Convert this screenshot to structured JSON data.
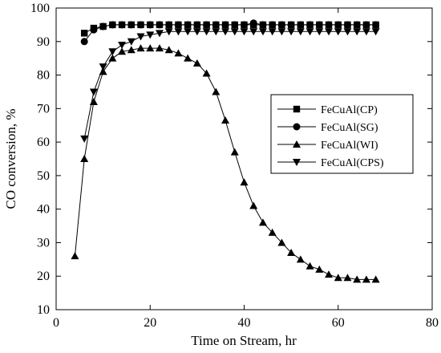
{
  "chart_data": {
    "type": "line",
    "title": "",
    "xlabel": "Time on Stream, hr",
    "ylabel": "CO conversion, %",
    "xlim": [
      0,
      80
    ],
    "ylim": [
      10,
      100
    ],
    "xticks": [
      0,
      20,
      40,
      60,
      80
    ],
    "yticks": [
      10,
      20,
      30,
      40,
      50,
      60,
      70,
      80,
      90,
      100
    ],
    "grid": false,
    "legend_position": "right",
    "series": [
      {
        "name": "FeCuAl(CP)",
        "marker": "square",
        "points": [
          [
            6,
            92.5
          ],
          [
            8,
            94
          ],
          [
            10,
            94.5
          ],
          [
            12,
            95
          ],
          [
            14,
            95
          ],
          [
            16,
            95
          ],
          [
            18,
            95
          ],
          [
            20,
            95
          ],
          [
            22,
            95
          ],
          [
            24,
            95
          ],
          [
            26,
            95
          ],
          [
            28,
            95
          ],
          [
            30,
            95
          ],
          [
            32,
            95
          ],
          [
            34,
            95
          ],
          [
            36,
            95
          ],
          [
            38,
            95
          ],
          [
            40,
            95
          ],
          [
            42,
            95
          ],
          [
            44,
            95
          ],
          [
            46,
            95
          ],
          [
            48,
            95
          ],
          [
            50,
            95
          ],
          [
            52,
            95
          ],
          [
            54,
            95
          ],
          [
            56,
            95
          ],
          [
            58,
            95
          ],
          [
            60,
            95
          ],
          [
            62,
            95
          ],
          [
            64,
            95
          ],
          [
            66,
            95
          ],
          [
            68,
            95
          ]
        ]
      },
      {
        "name": "FeCuAl(SG)",
        "marker": "circle",
        "points": [
          [
            6,
            90
          ],
          [
            8,
            93.5
          ],
          [
            10,
            94.5
          ],
          [
            12,
            95
          ],
          [
            14,
            95
          ],
          [
            16,
            95
          ],
          [
            18,
            95
          ],
          [
            20,
            95
          ],
          [
            22,
            95
          ],
          [
            24,
            95
          ],
          [
            26,
            95
          ],
          [
            28,
            95
          ],
          [
            30,
            95
          ],
          [
            32,
            95
          ],
          [
            34,
            95
          ],
          [
            36,
            95
          ],
          [
            38,
            95
          ],
          [
            40,
            95
          ],
          [
            42,
            95.5
          ],
          [
            44,
            95
          ],
          [
            46,
            95
          ],
          [
            48,
            95
          ],
          [
            50,
            95
          ],
          [
            52,
            95
          ],
          [
            54,
            95
          ],
          [
            56,
            95
          ],
          [
            58,
            95
          ],
          [
            60,
            95
          ],
          [
            62,
            95
          ],
          [
            64,
            95
          ],
          [
            66,
            95
          ],
          [
            68,
            95
          ]
        ]
      },
      {
        "name": "FeCuAl(WI)",
        "marker": "triangle-up",
        "points": [
          [
            4,
            26
          ],
          [
            6,
            55
          ],
          [
            8,
            72
          ],
          [
            10,
            81
          ],
          [
            12,
            85
          ],
          [
            14,
            87
          ],
          [
            16,
            87.5
          ],
          [
            18,
            88
          ],
          [
            20,
            88
          ],
          [
            22,
            88
          ],
          [
            24,
            87.5
          ],
          [
            26,
            86.5
          ],
          [
            28,
            85
          ],
          [
            30,
            83.5
          ],
          [
            32,
            80.5
          ],
          [
            34,
            75
          ],
          [
            36,
            66.5
          ],
          [
            38,
            57
          ],
          [
            40,
            48
          ],
          [
            42,
            41
          ],
          [
            44,
            36
          ],
          [
            46,
            33
          ],
          [
            48,
            30
          ],
          [
            50,
            27
          ],
          [
            52,
            25
          ],
          [
            54,
            23
          ],
          [
            56,
            22
          ],
          [
            58,
            20.5
          ],
          [
            60,
            19.5
          ],
          [
            62,
            19.5
          ],
          [
            64,
            19
          ],
          [
            66,
            19
          ],
          [
            68,
            19
          ]
        ]
      },
      {
        "name": "FeCuAl(CPS)",
        "marker": "triangle-down",
        "points": [
          [
            6,
            61
          ],
          [
            8,
            75
          ],
          [
            10,
            82.5
          ],
          [
            12,
            87
          ],
          [
            14,
            89
          ],
          [
            16,
            90
          ],
          [
            18,
            91.5
          ],
          [
            20,
            92
          ],
          [
            22,
            92.5
          ],
          [
            24,
            93
          ],
          [
            26,
            93
          ],
          [
            28,
            93
          ],
          [
            30,
            93
          ],
          [
            32,
            93
          ],
          [
            34,
            93
          ],
          [
            36,
            93
          ],
          [
            38,
            93
          ],
          [
            40,
            93
          ],
          [
            42,
            93
          ],
          [
            44,
            93
          ],
          [
            46,
            93
          ],
          [
            48,
            93
          ],
          [
            50,
            93
          ],
          [
            52,
            93
          ],
          [
            54,
            93
          ],
          [
            56,
            93
          ],
          [
            58,
            93
          ],
          [
            60,
            93
          ],
          [
            62,
            93
          ],
          [
            64,
            93
          ],
          [
            66,
            93
          ],
          [
            68,
            93
          ]
        ]
      }
    ]
  }
}
